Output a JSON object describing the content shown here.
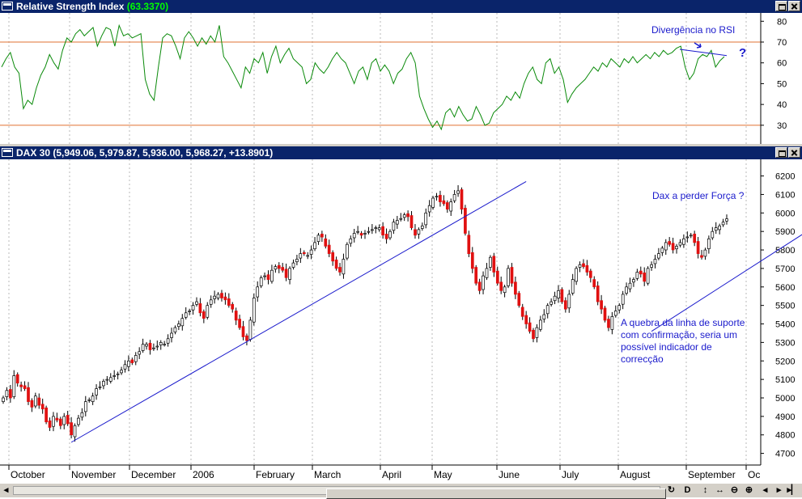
{
  "rsi_pane": {
    "title": "Relative Strength Index",
    "value": "(63.3370)",
    "annotation": "Divergência no RSI",
    "question": "?"
  },
  "dax_pane": {
    "title": "DAX 30",
    "ohlc": "(5,949.06, 5,979.87, 5,936.00, 5,968.27, +13.8901)",
    "annotation_top": "Dax a perder Força ?",
    "annotation_bottom": "A quebra da linha de suporte\ncom confirmação, seria um\npossível indicador de\ncorrecção"
  },
  "colors": {
    "title_bar": "#0a246a",
    "rsi_line": "#0a8a0a",
    "rsi_levels": "#e07030",
    "up_candle": "#ffffff",
    "down_candle": "#e01010",
    "trendline": "#1a1acc",
    "annotation": "#1a1acc"
  },
  "chart_data": [
    {
      "type": "line",
      "title": "Relative Strength Index",
      "ylim": [
        21,
        84
      ],
      "yticks": [
        30,
        40,
        50,
        60,
        70,
        80
      ],
      "levels": [
        30,
        70
      ],
      "grid": "vertical dotted",
      "points": [
        [
          0,
          58
        ],
        [
          1,
          62
        ],
        [
          2,
          65
        ],
        [
          3,
          58
        ],
        [
          4,
          55
        ],
        [
          5,
          38
        ],
        [
          6,
          42
        ],
        [
          7,
          40
        ],
        [
          8,
          48
        ],
        [
          9,
          54
        ],
        [
          10,
          58
        ],
        [
          11,
          64
        ],
        [
          12,
          60
        ],
        [
          13,
          57
        ],
        [
          14,
          66
        ],
        [
          15,
          72
        ],
        [
          16,
          70
        ],
        [
          17,
          74
        ],
        [
          18,
          76
        ],
        [
          19,
          73
        ],
        [
          20,
          75
        ],
        [
          21,
          77
        ],
        [
          22,
          68
        ],
        [
          23,
          73
        ],
        [
          24,
          77
        ],
        [
          25,
          76
        ],
        [
          26,
          68
        ],
        [
          27,
          78
        ],
        [
          28,
          73
        ],
        [
          29,
          74
        ],
        [
          30,
          72
        ],
        [
          31,
          73
        ],
        [
          32,
          74
        ],
        [
          33,
          52
        ],
        [
          34,
          45
        ],
        [
          35,
          42
        ],
        [
          36,
          58
        ],
        [
          37,
          72
        ],
        [
          38,
          74
        ],
        [
          39,
          73
        ],
        [
          40,
          68
        ],
        [
          41,
          62
        ],
        [
          42,
          72
        ],
        [
          43,
          75
        ],
        [
          44,
          72
        ],
        [
          45,
          68
        ],
        [
          46,
          72
        ],
        [
          47,
          69
        ],
        [
          48,
          73
        ],
        [
          49,
          70
        ],
        [
          50,
          78
        ],
        [
          51,
          63
        ],
        [
          52,
          60
        ],
        [
          53,
          56
        ],
        [
          54,
          52
        ],
        [
          55,
          48
        ],
        [
          56,
          58
        ],
        [
          57,
          55
        ],
        [
          58,
          62
        ],
        [
          59,
          60
        ],
        [
          60,
          65
        ],
        [
          61,
          55
        ],
        [
          62,
          63
        ],
        [
          63,
          68
        ],
        [
          64,
          60
        ],
        [
          65,
          64
        ],
        [
          66,
          67
        ],
        [
          67,
          62
        ],
        [
          68,
          60
        ],
        [
          69,
          58
        ],
        [
          70,
          50
        ],
        [
          71,
          52
        ],
        [
          72,
          60
        ],
        [
          73,
          57
        ],
        [
          74,
          55
        ],
        [
          75,
          58
        ],
        [
          76,
          62
        ],
        [
          77,
          65
        ],
        [
          78,
          62
        ],
        [
          79,
          60
        ],
        [
          80,
          55
        ],
        [
          81,
          50
        ],
        [
          82,
          56
        ],
        [
          83,
          58
        ],
        [
          84,
          52
        ],
        [
          85,
          60
        ],
        [
          86,
          62
        ],
        [
          87,
          56
        ],
        [
          88,
          59
        ],
        [
          89,
          56
        ],
        [
          90,
          50
        ],
        [
          91,
          55
        ],
        [
          92,
          57
        ],
        [
          93,
          62
        ],
        [
          94,
          65
        ],
        [
          95,
          60
        ],
        [
          96,
          44
        ],
        [
          97,
          38
        ],
        [
          98,
          33
        ],
        [
          99,
          29
        ],
        [
          100,
          32
        ],
        [
          101,
          28
        ],
        [
          102,
          36
        ],
        [
          103,
          38
        ],
        [
          104,
          34
        ],
        [
          105,
          39
        ],
        [
          106,
          35
        ],
        [
          107,
          32
        ],
        [
          108,
          33
        ],
        [
          109,
          39
        ],
        [
          110,
          35
        ],
        [
          111,
          30
        ],
        [
          112,
          31
        ],
        [
          113,
          36
        ],
        [
          114,
          38
        ],
        [
          115,
          40
        ],
        [
          116,
          44
        ],
        [
          117,
          42
        ],
        [
          118,
          46
        ],
        [
          119,
          43
        ],
        [
          120,
          50
        ],
        [
          121,
          55
        ],
        [
          122,
          58
        ],
        [
          123,
          52
        ],
        [
          124,
          50
        ],
        [
          125,
          60
        ],
        [
          126,
          62
        ],
        [
          127,
          55
        ],
        [
          128,
          58
        ],
        [
          129,
          52
        ],
        [
          130,
          41
        ],
        [
          131,
          45
        ],
        [
          132,
          48
        ],
        [
          133,
          50
        ],
        [
          134,
          52
        ],
        [
          135,
          55
        ],
        [
          136,
          58
        ],
        [
          137,
          56
        ],
        [
          138,
          60
        ],
        [
          139,
          58
        ],
        [
          140,
          62
        ],
        [
          141,
          60
        ],
        [
          142,
          58
        ],
        [
          143,
          62
        ],
        [
          144,
          60
        ],
        [
          145,
          63
        ],
        [
          146,
          60
        ],
        [
          147,
          62
        ],
        [
          148,
          64
        ],
        [
          149,
          62
        ],
        [
          150,
          65
        ],
        [
          151,
          63
        ],
        [
          152,
          66
        ],
        [
          153,
          64
        ],
        [
          154,
          65
        ],
        [
          155,
          67
        ],
        [
          156,
          68
        ],
        [
          157,
          58
        ],
        [
          158,
          52
        ],
        [
          159,
          55
        ],
        [
          160,
          62
        ],
        [
          161,
          64
        ],
        [
          162,
          63
        ],
        [
          163,
          66
        ],
        [
          164,
          58
        ],
        [
          165,
          61
        ],
        [
          166,
          63
        ]
      ]
    },
    {
      "type": "candlestick",
      "title": "DAX 30",
      "ylim": [
        4637,
        6290
      ],
      "yticks": [
        4700,
        4800,
        4900,
        5000,
        5100,
        5200,
        5300,
        5400,
        5500,
        5600,
        5700,
        5800,
        5900,
        6000,
        6100,
        6200
      ],
      "x_labels": [
        "October",
        "November",
        "December",
        "2006",
        "February",
        "March",
        "April",
        "May",
        "June",
        "July",
        "August",
        "September",
        "Oc"
      ],
      "grid": "vertical dotted",
      "close": [
        5000,
        5040,
        5000,
        5120,
        5080,
        5060,
        5050,
        4980,
        4950,
        5010,
        4960,
        4940,
        4870,
        4840,
        4900,
        4880,
        4850,
        4900,
        4860,
        4800,
        4850,
        4890,
        4920,
        4980,
        4990,
        5010,
        5050,
        5060,
        5090,
        5100,
        5110,
        5120,
        5130,
        5150,
        5180,
        5200,
        5190,
        5230,
        5250,
        5290,
        5290,
        5260,
        5270,
        5280,
        5300,
        5290,
        5320,
        5350,
        5380,
        5400,
        5430,
        5460,
        5470,
        5500,
        5520,
        5460,
        5430,
        5500,
        5530,
        5550,
        5560,
        5540,
        5530,
        5500,
        5480,
        5420,
        5380,
        5330,
        5310,
        5420,
        5540,
        5600,
        5650,
        5660,
        5640,
        5690,
        5710,
        5700,
        5690,
        5650,
        5700,
        5730,
        5750,
        5780,
        5780,
        5770,
        5800,
        5840,
        5880,
        5870,
        5820,
        5780,
        5740,
        5700,
        5680,
        5750,
        5830,
        5860,
        5890,
        5900,
        5880,
        5890,
        5900,
        5910,
        5920,
        5920,
        5880,
        5860,
        5900,
        5950,
        5960,
        5970,
        5990,
        5980,
        5920,
        5880,
        5910,
        5930,
        6000,
        6040,
        6080,
        6090,
        6060,
        6050,
        6020,
        6060,
        6100,
        6120,
        6020,
        5890,
        5780,
        5700,
        5620,
        5580,
        5660,
        5700,
        5760,
        5680,
        5620,
        5580,
        5600,
        5700,
        5620,
        5560,
        5500,
        5440,
        5400,
        5360,
        5320,
        5380,
        5420,
        5450,
        5500,
        5520,
        5550,
        5580,
        5520,
        5480,
        5560,
        5640,
        5700,
        5720,
        5710,
        5680,
        5650,
        5600,
        5520,
        5480,
        5420,
        5380,
        5440,
        5470,
        5500,
        5560,
        5600,
        5620,
        5640,
        5680,
        5670,
        5630,
        5700,
        5720,
        5750,
        5780,
        5810,
        5840,
        5830,
        5800,
        5820,
        5840,
        5860,
        5870,
        5880,
        5840,
        5780,
        5760,
        5800,
        5860,
        5900,
        5920,
        5930,
        5950,
        5968
      ],
      "trendlines": [
        {
          "from": [
            19,
            4760
          ],
          "to": [
            146,
            6170
          ]
        },
        {
          "from": [
            181,
            5360
          ],
          "to": [
            226,
            5920
          ]
        }
      ]
    }
  ]
}
